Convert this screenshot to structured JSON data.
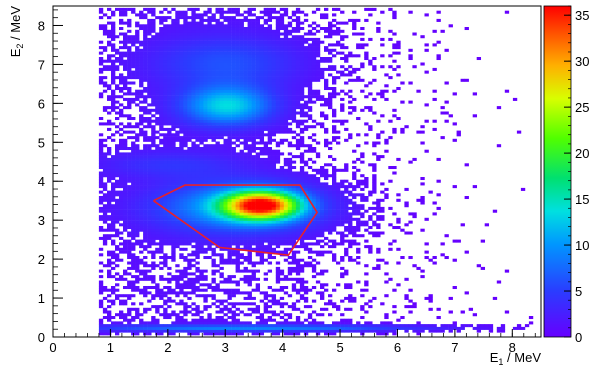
{
  "chart_data": {
    "type": "heatmap",
    "title": "",
    "xlabel": {
      "base": "E",
      "sub": "1",
      "rest": " / MeV"
    },
    "ylabel": {
      "base": "E",
      "sub": "2",
      "rest": " / MeV"
    },
    "xlim": [
      0,
      8.5
    ],
    "ylim": [
      0,
      8.5
    ],
    "x_ticks": [
      0,
      1,
      2,
      3,
      4,
      5,
      6,
      7,
      8
    ],
    "y_ticks": [
      0,
      1,
      2,
      3,
      4,
      5,
      6,
      7,
      8
    ],
    "x_tick_labels": [
      "0",
      "1",
      "2",
      "3",
      "4",
      "5",
      "6",
      "7",
      "8"
    ],
    "y_tick_labels": [
      "0",
      "1",
      "2",
      "3",
      "4",
      "5",
      "6",
      "7",
      "8"
    ],
    "z_range": [
      0,
      36
    ],
    "colorbar_ticks": [
      0,
      5,
      10,
      15,
      20,
      25,
      30,
      35
    ],
    "colorbar_tick_labels": [
      "0",
      "5",
      "10",
      "15",
      "20",
      "25",
      "30",
      "35"
    ],
    "grid": false,
    "clusters": [
      {
        "name": "upper-blob",
        "center": [
          3.0,
          5.9
        ],
        "sigma": [
          0.55,
          0.35
        ],
        "peak": 12
      },
      {
        "name": "upper-band",
        "center": [
          3.0,
          7.0
        ],
        "sigma": [
          0.9,
          0.5
        ],
        "peak": 5
      },
      {
        "name": "main-blob",
        "center": [
          3.6,
          3.35
        ],
        "sigma": [
          0.45,
          0.25
        ],
        "peak": 30
      },
      {
        "name": "main-wide",
        "center": [
          3.2,
          3.3
        ],
        "sigma": [
          1.0,
          0.45
        ],
        "peak": 10
      },
      {
        "name": "bottom-stripe",
        "center": [
          3.5,
          0.2
        ],
        "sigma": [
          2.2,
          0.06
        ],
        "peak": 8
      },
      {
        "name": "mid-band",
        "center": [
          2.0,
          4.4
        ],
        "sigma": [
          0.9,
          0.25
        ],
        "peak": 3
      }
    ],
    "cut_polygon": {
      "color": "#e8202a",
      "points": [
        [
          1.75,
          3.5
        ],
        [
          2.3,
          3.9
        ],
        [
          4.3,
          3.9
        ],
        [
          4.6,
          3.2
        ],
        [
          4.1,
          2.1
        ],
        [
          2.9,
          2.3
        ],
        [
          1.75,
          3.5
        ]
      ]
    }
  }
}
